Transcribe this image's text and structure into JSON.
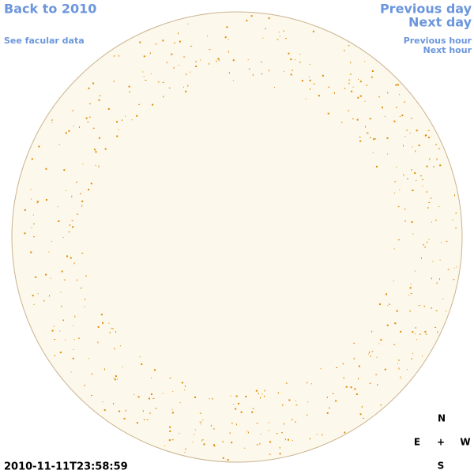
{
  "nav": {
    "back": "Back to 2010",
    "facular": "See facular data",
    "previous_day": "Previous day",
    "next_day": "Next day",
    "previous_hour": "Previous hour",
    "next_hour": "Next hour"
  },
  "timestamp": "2010-11-11T23:58:59",
  "compass": {
    "north": "N",
    "east": "E",
    "center": "+",
    "west": "W",
    "south": "S"
  }
}
